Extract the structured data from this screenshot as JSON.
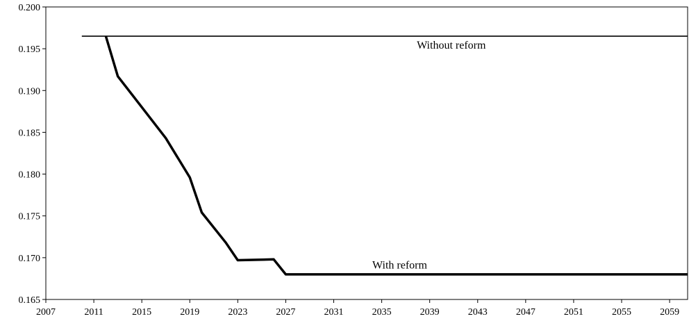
{
  "chart_data": {
    "type": "line",
    "title": "",
    "xlabel": "",
    "ylabel": "",
    "xlim": [
      2007,
      2060.5
    ],
    "ylim": [
      0.165,
      0.2
    ],
    "grid": false,
    "x_ticks": [
      2007,
      2011,
      2015,
      2019,
      2023,
      2027,
      2031,
      2035,
      2039,
      2043,
      2047,
      2051,
      2055,
      2059
    ],
    "y_ticks": [
      "0.165",
      "0.170",
      "0.175",
      "0.180",
      "0.185",
      "0.190",
      "0.195",
      "0.200"
    ],
    "series": [
      {
        "name": "Without reform",
        "color": "#000000",
        "points": [
          [
            2010,
            0.1965
          ],
          [
            2060.5,
            0.1965
          ]
        ]
      },
      {
        "name": "With reform",
        "color": "#000000",
        "points": [
          [
            2012,
            0.1965
          ],
          [
            2013,
            0.1917
          ],
          [
            2015,
            0.188
          ],
          [
            2017,
            0.1843
          ],
          [
            2019,
            0.1796
          ],
          [
            2020,
            0.1754
          ],
          [
            2022,
            0.1718
          ],
          [
            2023,
            0.1697
          ],
          [
            2026,
            0.1698
          ],
          [
            2027,
            0.168
          ],
          [
            2060.5,
            0.168
          ]
        ]
      }
    ],
    "annotations": [
      {
        "text": "Without reform",
        "x": 2040.8,
        "y": 0.1955
      },
      {
        "text": "With reform",
        "x": 2036.5,
        "y": 0.1692
      }
    ]
  }
}
